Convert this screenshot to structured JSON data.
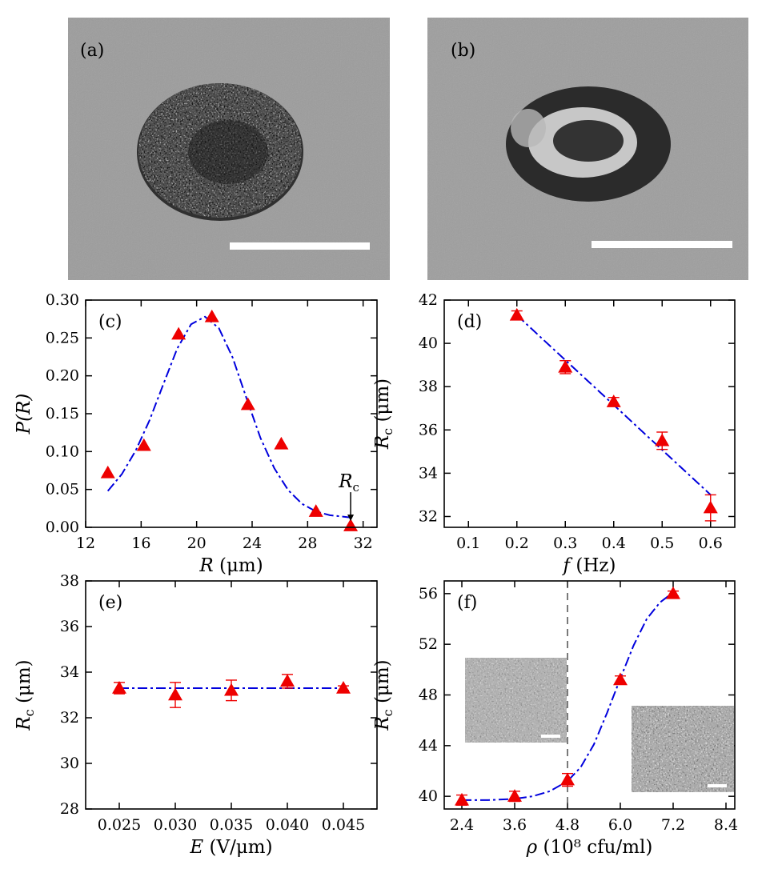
{
  "panels": {
    "a": {
      "label": "(a)"
    },
    "b": {
      "label": "(b)"
    }
  },
  "colors": {
    "marker": "#ee0000",
    "fit": "#0000dd"
  },
  "chart_data": [
    {
      "id": "c",
      "type": "scatter",
      "label": "(c)",
      "xlabel": "R (μm)",
      "ylabel": "P(R)",
      "xlim": [
        12,
        33
      ],
      "ylim": [
        0,
        0.3
      ],
      "xticks": [
        12,
        16,
        20,
        24,
        28,
        32
      ],
      "yticks": [
        0.0,
        0.05,
        0.1,
        0.15,
        0.2,
        0.25,
        0.3
      ],
      "ytick_labels": [
        "0.00",
        "0.05",
        "0.10",
        "0.15",
        "0.20",
        "0.25",
        "0.30"
      ],
      "points": [
        {
          "x": 13.6,
          "y": 0.072
        },
        {
          "x": 16.2,
          "y": 0.108
        },
        {
          "x": 18.7,
          "y": 0.255
        },
        {
          "x": 21.1,
          "y": 0.278
        },
        {
          "x": 23.7,
          "y": 0.162
        },
        {
          "x": 26.1,
          "y": 0.11
        },
        {
          "x": 28.6,
          "y": 0.021
        },
        {
          "x": 31.1,
          "y": 0.002
        }
      ],
      "fit": {
        "style": "dash-dot",
        "x": [
          13.6,
          14.6,
          15.6,
          16.6,
          17.6,
          18.6,
          19.6,
          20.6,
          21.6,
          22.6,
          23.6,
          24.6,
          25.6,
          26.6,
          27.6,
          28.6,
          29.6,
          30.6,
          31.1
        ],
        "y": [
          0.048,
          0.07,
          0.101,
          0.141,
          0.189,
          0.236,
          0.268,
          0.278,
          0.263,
          0.224,
          0.17,
          0.118,
          0.078,
          0.049,
          0.031,
          0.021,
          0.016,
          0.014,
          0.013
        ]
      },
      "annotation": {
        "text": "R",
        "sub": "c",
        "x": 31.1,
        "y": 0.002
      }
    },
    {
      "id": "d",
      "type": "scatter",
      "label": "(d)",
      "xlabel": "f (Hz)",
      "ylabel": "R",
      "ylabel_sub": "c",
      "ylabel_unit": "(μm)",
      "xlim": [
        0.05,
        0.65
      ],
      "ylim": [
        31.5,
        42
      ],
      "xticks": [
        0.1,
        0.2,
        0.3,
        0.4,
        0.5,
        0.6
      ],
      "xtick_labels": [
        "0.1",
        "0.2",
        "0.3",
        "0.4",
        "0.5",
        "0.6"
      ],
      "yticks": [
        32,
        34,
        36,
        38,
        40,
        42
      ],
      "points": [
        {
          "x": 0.2,
          "y": 41.3,
          "err": 0.2
        },
        {
          "x": 0.3,
          "y": 38.9,
          "err": 0.3
        },
        {
          "x": 0.4,
          "y": 37.3,
          "err": 0.2
        },
        {
          "x": 0.5,
          "y": 35.5,
          "err": 0.4
        },
        {
          "x": 0.6,
          "y": 32.4,
          "err": 0.6
        }
      ],
      "fit": {
        "style": "dash-dot",
        "x": [
          0.2,
          0.6
        ],
        "y": [
          41.3,
          33.0
        ]
      }
    },
    {
      "id": "e",
      "type": "scatter",
      "label": "(e)",
      "xlabel": "E (V/μm)",
      "ylabel": "R",
      "ylabel_sub": "c",
      "ylabel_unit": "(μm)",
      "xlim": [
        0.022,
        0.048
      ],
      "ylim": [
        28,
        38
      ],
      "xticks": [
        0.025,
        0.03,
        0.035,
        0.04,
        0.045
      ],
      "xtick_labels": [
        "0.025",
        "0.030",
        "0.035",
        "0.040",
        "0.045"
      ],
      "yticks": [
        28,
        30,
        32,
        34,
        36,
        38
      ],
      "points": [
        {
          "x": 0.025,
          "y": 33.3,
          "err": 0.25
        },
        {
          "x": 0.03,
          "y": 33.0,
          "err": 0.55
        },
        {
          "x": 0.035,
          "y": 33.2,
          "err": 0.45
        },
        {
          "x": 0.04,
          "y": 33.6,
          "err": 0.3
        },
        {
          "x": 0.045,
          "y": 33.3,
          "err": 0.1
        }
      ],
      "fit": {
        "style": "dash-dot",
        "x": [
          0.025,
          0.045
        ],
        "y": [
          33.3,
          33.3
        ]
      }
    },
    {
      "id": "f",
      "type": "scatter",
      "label": "(f)",
      "xlabel": "ρ (10⁸ cfu/ml)",
      "ylabel": "R",
      "ylabel_sub": "c",
      "ylabel_unit": "(μm)",
      "xlim": [
        2.0,
        8.6
      ],
      "ylim": [
        39,
        57
      ],
      "xticks": [
        2.4,
        3.6,
        4.8,
        6.0,
        7.2,
        8.4
      ],
      "xtick_labels": [
        "2.4",
        "3.6",
        "4.8",
        "6.0",
        "7.2",
        "8.4"
      ],
      "yticks": [
        40,
        44,
        48,
        52,
        56
      ],
      "points": [
        {
          "x": 2.4,
          "y": 39.7,
          "err": 0.4
        },
        {
          "x": 3.6,
          "y": 40.0,
          "err": 0.4
        },
        {
          "x": 4.8,
          "y": 41.3,
          "err": 0.5
        },
        {
          "x": 6.0,
          "y": 49.2,
          "err": 0.3
        },
        {
          "x": 7.2,
          "y": 56.0,
          "err": 0.2
        }
      ],
      "fit": {
        "style": "dash-dot",
        "x": [
          2.4,
          3.0,
          3.6,
          4.0,
          4.4,
          4.8,
          5.1,
          5.4,
          5.7,
          6.0,
          6.3,
          6.6,
          6.9,
          7.2
        ],
        "y": [
          39.7,
          39.7,
          39.8,
          40.0,
          40.4,
          41.2,
          42.3,
          44.1,
          46.6,
          49.3,
          51.9,
          54.0,
          55.3,
          56.1
        ]
      },
      "vline": {
        "x": 4.8,
        "style": "dashed"
      }
    }
  ]
}
